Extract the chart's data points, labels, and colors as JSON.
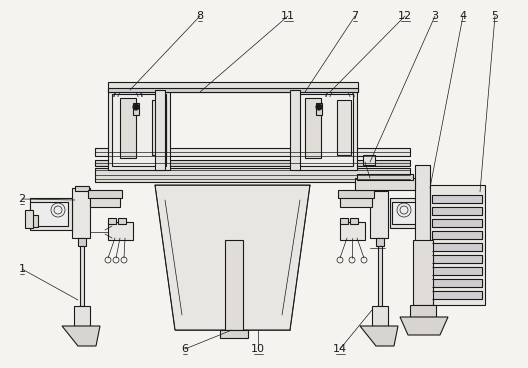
{
  "bg_color": "#f5f3ef",
  "line_color": "#1a1a1a",
  "lw": 0.8,
  "thin_lw": 0.5,
  "fig_w": 5.28,
  "fig_h": 3.68,
  "dpi": 100
}
